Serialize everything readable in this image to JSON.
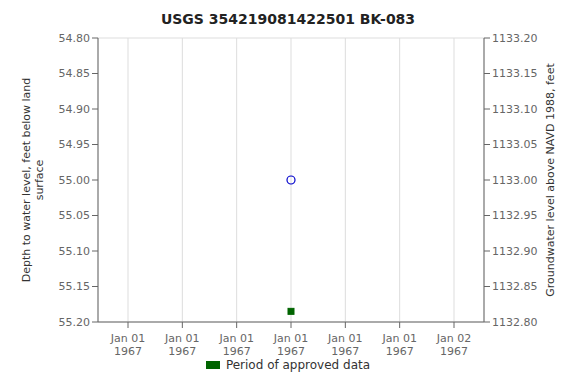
{
  "chart_data": {
    "type": "scatter",
    "title": "USGS 354219081422501 BK-083",
    "ylabel": "Depth to water level, feet below land\n surface",
    "y2label": "Groundwater level above NAVD 1988, feet",
    "categories": [
      "Jan 01\n1967",
      "Jan 01\n1967",
      "Jan 01\n1967",
      "Jan 01\n1967",
      "Jan 01\n1967",
      "Jan 01\n1967",
      "Jan 02\n1967"
    ],
    "series": [
      {
        "color": "#0000cc",
        "marker": "circle",
        "values": [
          null,
          null,
          null,
          55.0,
          null,
          null,
          null
        ]
      },
      {
        "name": "Period of approved data",
        "color": "#006400",
        "marker": "square",
        "values": [
          null,
          null,
          null,
          55.185,
          null,
          null,
          null
        ]
      }
    ],
    "ylim": [
      55.2,
      54.8
    ],
    "yticks": [
      {
        "value": 54.8,
        "label": "54.80"
      },
      {
        "value": 54.85,
        "label": "54.85"
      },
      {
        "value": 54.9,
        "label": "54.90"
      },
      {
        "value": 54.95,
        "label": "54.95"
      },
      {
        "value": 55.0,
        "label": "55.00"
      },
      {
        "value": 55.05,
        "label": "55.05"
      },
      {
        "value": 55.1,
        "label": "55.10"
      },
      {
        "value": 55.15,
        "label": "55.15"
      },
      {
        "value": 55.2,
        "label": "55.20"
      }
    ],
    "y2lim": [
      1132.8,
      1133.2
    ],
    "y2ticks": [
      {
        "value": 1132.8,
        "label": "1132.80"
      },
      {
        "value": 1132.85,
        "label": "1132.85"
      },
      {
        "value": 1132.9,
        "label": "1132.90"
      },
      {
        "value": 1132.95,
        "label": "1132.95"
      },
      {
        "value": 1133.0,
        "label": "1133.00"
      },
      {
        "value": 1133.05,
        "label": "1133.05"
      },
      {
        "value": 1133.1,
        "label": "1133.10"
      },
      {
        "value": 1133.15,
        "label": "1133.15"
      },
      {
        "value": 1133.2,
        "label": "1133.20"
      }
    ],
    "grid": true,
    "legend": "bottom"
  }
}
